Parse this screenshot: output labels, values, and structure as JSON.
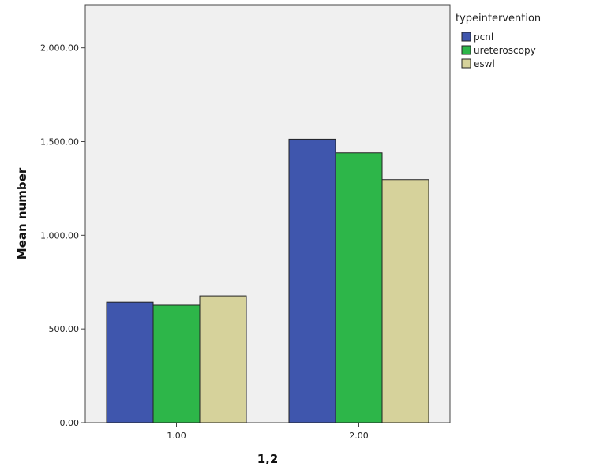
{
  "chart_data": {
    "type": "bar",
    "xlabel": "1,2",
    "ylabel": "Mean number",
    "categories": [
      "1.00",
      "2.00"
    ],
    "yticks": [
      "0.00",
      "500.00",
      "1,000.00",
      "1,500.00",
      "2,000.00"
    ],
    "ylim": [
      0,
      2230
    ],
    "grid": false,
    "legend_title": "typeintervention",
    "legend_position": "right",
    "series": [
      {
        "name": "pcnl",
        "values": [
          643,
          1513
        ],
        "color": "#3F56AD"
      },
      {
        "name": "ureteroscopy",
        "values": [
          627,
          1440
        ],
        "color": "#2DB649"
      },
      {
        "name": "eswl",
        "values": [
          677,
          1297
        ],
        "color": "#D6D29B"
      }
    ],
    "plot_background": "#F0F0F0"
  }
}
